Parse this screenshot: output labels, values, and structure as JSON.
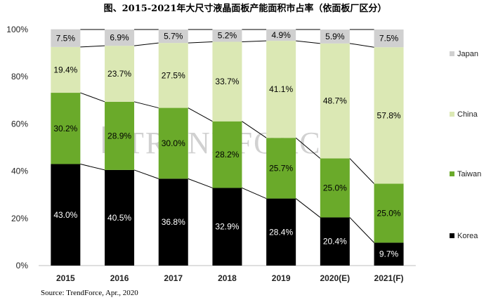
{
  "chart_data": {
    "type": "bar",
    "stacked": true,
    "title": "图、2015-2021年大尺寸液晶面板产能面积市占率（依面板厂区分）",
    "categories": [
      "2015",
      "2016",
      "2017",
      "2018",
      "2019",
      "2020(E)",
      "2021(F)"
    ],
    "series": [
      {
        "name": "Korea",
        "values": [
          43.0,
          40.5,
          36.8,
          32.9,
          28.4,
          20.4,
          9.7
        ],
        "color": "#000000",
        "label_color": "#ffffff"
      },
      {
        "name": "Taiwan",
        "values": [
          30.2,
          28.9,
          30.0,
          28.2,
          25.7,
          25.0,
          25.0
        ],
        "color": "#6aaa2a",
        "label_color": "#000000"
      },
      {
        "name": "China",
        "values": [
          19.4,
          23.7,
          27.5,
          33.7,
          41.1,
          48.7,
          57.8
        ],
        "color": "#dbe8b4",
        "label_color": "#000000"
      },
      {
        "name": "Japan",
        "values": [
          7.5,
          6.9,
          5.7,
          5.2,
          4.9,
          5.9,
          7.5
        ],
        "color": "#d0d0d0",
        "label_color": "#000000"
      }
    ],
    "data_labels": [
      [
        "43.0%",
        "40.5%",
        "36.8%",
        "32.9%",
        "28.4%",
        "20.4%",
        "9.7%"
      ],
      [
        "30.2%",
        "28.9%",
        "30.0%",
        "28.2%",
        "25.7%",
        "25.0%",
        "25.0%"
      ],
      [
        "19.4%",
        "23.7%",
        "27.5%",
        "33.7%",
        "41.1%",
        "48.7%",
        "57.8%"
      ],
      [
        "7.5%",
        "6.9%",
        "5.7%",
        "5.2%",
        "4.9%",
        "5.9%",
        "7.5%"
      ]
    ],
    "y_ticks": [
      "0%",
      "20%",
      "40%",
      "60%",
      "80%",
      "100%"
    ],
    "ylim": [
      0,
      100
    ],
    "series_lines": true,
    "legend_position": "right",
    "source": "Source: TrendForce, Apr., 2020",
    "watermark": "TRENDFORCE"
  }
}
